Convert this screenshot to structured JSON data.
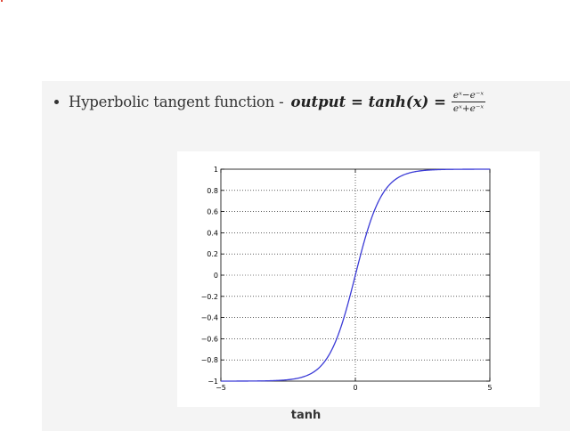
{
  "bullet": {
    "text": "Hyperbolic tangent function - ",
    "formula_lhs": "output = tanh(x) =",
    "formula_numerator": "eˣ−e⁻ˣ",
    "formula_denominator": "eˣ+e⁻ˣ"
  },
  "colors": {
    "curve": "#3a3ad6",
    "card_background": "#f4f4f4",
    "grid": "#000000"
  },
  "chart_data": {
    "type": "line",
    "title": "",
    "caption": "tanh",
    "xlabel": "",
    "ylabel": "",
    "xlim": [
      -5,
      5
    ],
    "ylim": [
      -1,
      1
    ],
    "grid": true,
    "x_ticks": [
      -5,
      0,
      5
    ],
    "x_tick_labels": [
      "−5",
      "0",
      "5"
    ],
    "y_ticks": [
      -1,
      -0.8,
      -0.6,
      -0.4,
      -0.2,
      0,
      0.2,
      0.4,
      0.6,
      0.8,
      1
    ],
    "y_tick_labels": [
      "−1",
      "−0.8",
      "−0.6",
      "−0.4",
      "−0.2",
      "0",
      "0.2",
      "0.4",
      "0.6",
      "0.8",
      "1"
    ],
    "series": [
      {
        "function": "tanh",
        "x": [
          -5,
          -4,
          -3.5,
          -3,
          -2.5,
          -2,
          -1.5,
          -1.25,
          -1,
          -0.75,
          -0.5,
          -0.25,
          0,
          0.25,
          0.5,
          0.75,
          1,
          1.25,
          1.5,
          2,
          2.5,
          3,
          3.5,
          4,
          5
        ],
        "y": [
          -0.9999,
          -0.9993,
          -0.9982,
          -0.9951,
          -0.9866,
          -0.964,
          -0.9051,
          -0.8483,
          -0.7616,
          -0.6351,
          -0.4621,
          -0.2449,
          0,
          0.2449,
          0.4621,
          0.6351,
          0.7616,
          0.8483,
          0.9051,
          0.964,
          0.9866,
          0.9951,
          0.9982,
          0.9993,
          0.9999
        ]
      }
    ]
  }
}
